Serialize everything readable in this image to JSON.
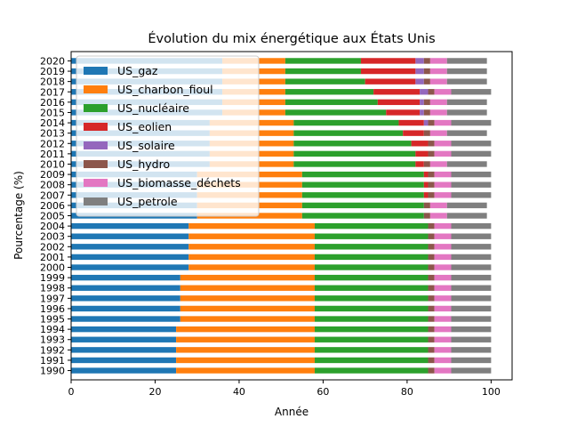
{
  "chart_data": {
    "type": "bar",
    "orientation": "horizontal",
    "stacked": true,
    "title": "Évolution du mix énergétique aux États Unis",
    "xlabel": "Année",
    "ylabel": "Pourcentage (%)",
    "xlim": [
      0,
      105
    ],
    "xticks": [
      0,
      20,
      40,
      60,
      80,
      100
    ],
    "grid": false,
    "legend_position": "top-left",
    "categories": [
      "1990",
      "1991",
      "1992",
      "1993",
      "1994",
      "1995",
      "1996",
      "1997",
      "1998",
      "1999",
      "2000",
      "2001",
      "2002",
      "2003",
      "2004",
      "2005",
      "2006",
      "2007",
      "2008",
      "2009",
      "2010",
      "2011",
      "2012",
      "2013",
      "2014",
      "2015",
      "2016",
      "2017",
      "2018",
      "2019",
      "2020"
    ],
    "series": [
      {
        "name": "US_gaz",
        "color": "#1f77b4",
        "values": [
          25,
          25,
          25,
          25,
          25,
          26,
          26,
          26,
          26,
          26,
          28,
          28,
          28,
          28,
          28,
          30,
          30,
          30,
          30,
          30,
          33,
          33,
          33,
          33,
          33,
          36,
          36,
          36,
          36,
          36,
          36
        ]
      },
      {
        "name": "US_charbon_fioul",
        "color": "#ff7f0e",
        "values": [
          33,
          33,
          33,
          33,
          33,
          32,
          32,
          32,
          32,
          32,
          30,
          30,
          30,
          30,
          30,
          25,
          25,
          25,
          25,
          25,
          20,
          20,
          20,
          20,
          20,
          15,
          15,
          15,
          15,
          15,
          15
        ]
      },
      {
        "name": "US_nucléaire",
        "color": "#2ca02c",
        "values": [
          27,
          27,
          27,
          27,
          27,
          27,
          27,
          27,
          27,
          27,
          27,
          27,
          27,
          27,
          27,
          29,
          29,
          29,
          29,
          29,
          29,
          29,
          28,
          26,
          25,
          24,
          22,
          21,
          19,
          18,
          18
        ]
      },
      {
        "name": "US_eolien",
        "color": "#d62728",
        "values": [
          0,
          0,
          0,
          0,
          0,
          0,
          0,
          0,
          0,
          0,
          0,
          0,
          0,
          0,
          0,
          0,
          0,
          1,
          1,
          1,
          2,
          3,
          4,
          5,
          6,
          8,
          10,
          11,
          12,
          13,
          13
        ]
      },
      {
        "name": "US_solaire",
        "color": "#9467bd",
        "values": [
          0,
          0,
          0,
          0,
          0,
          0,
          0,
          0,
          0,
          0,
          0,
          0,
          0,
          0,
          0,
          0,
          0,
          0,
          0,
          0,
          0,
          0,
          0,
          0,
          1,
          1,
          1,
          2,
          2,
          2,
          2
        ]
      },
      {
        "name": "US_hydro",
        "color": "#8c564b",
        "values": [
          1.5,
          1.5,
          1.5,
          1.5,
          1.5,
          1.5,
          1.5,
          1.5,
          1.5,
          1.5,
          1.5,
          1.5,
          1.5,
          1.5,
          1.5,
          1.5,
          1.5,
          1.5,
          1.5,
          1.5,
          1.5,
          1.5,
          1.5,
          1.5,
          1.5,
          1.5,
          1.5,
          1.5,
          1.5,
          1.5,
          1.5
        ]
      },
      {
        "name": "US_biomasse_déchets",
        "color": "#e377c2",
        "values": [
          4,
          4,
          4,
          4,
          4,
          4,
          4,
          4,
          4,
          4,
          4,
          4,
          4,
          4,
          4,
          4,
          4,
          4,
          4,
          4,
          4,
          4,
          4,
          4,
          4,
          4,
          4,
          4,
          4,
          4,
          4
        ]
      },
      {
        "name": "US_petrole",
        "color": "#7f7f7f",
        "values": [
          9.5,
          9.5,
          9.5,
          9.5,
          9.5,
          9.5,
          9.5,
          9.5,
          9.5,
          9.5,
          9.5,
          9.5,
          9.5,
          9.5,
          9.5,
          9.5,
          9.5,
          9.5,
          9.5,
          9.5,
          9.5,
          9.5,
          9.5,
          9.5,
          9.5,
          9.5,
          9.5,
          9.5,
          9.5,
          9.5,
          9.5
        ]
      }
    ]
  }
}
